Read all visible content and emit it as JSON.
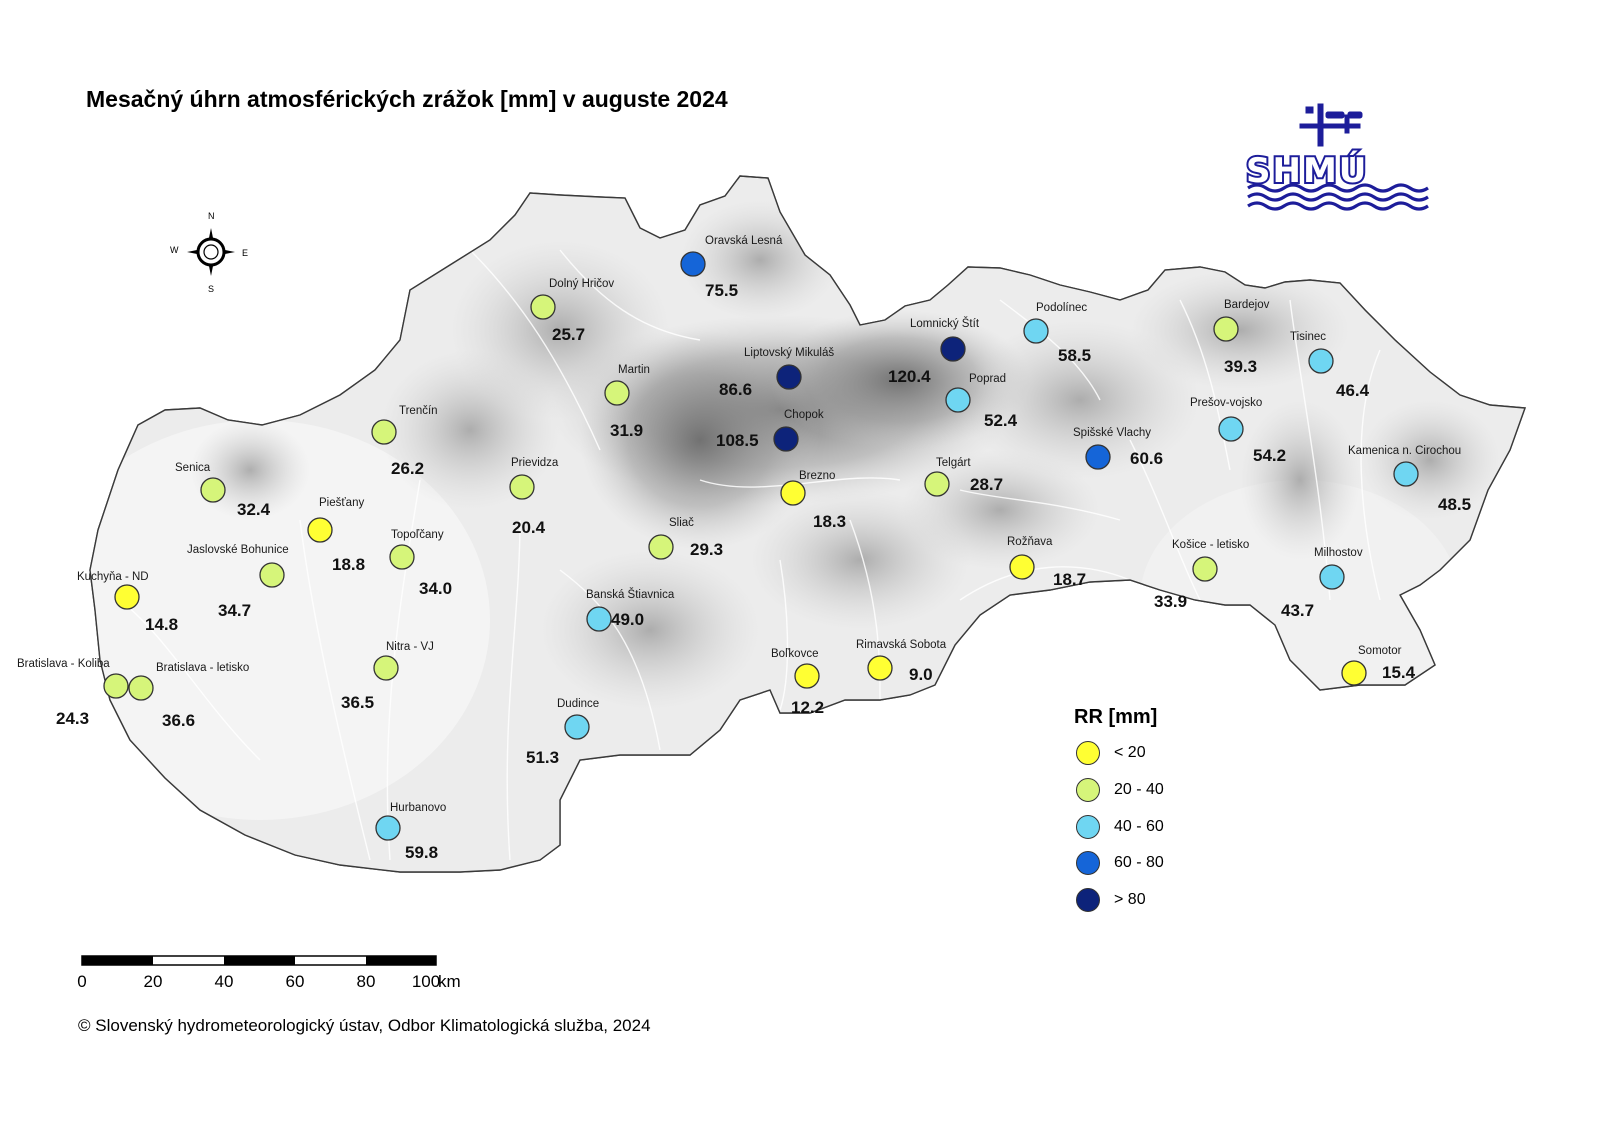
{
  "title": "Mesačný úhrn atmosférických zrážok [mm] v auguste 2024",
  "logo": {
    "text": "SHMÚ",
    "color": "#1d1d9a"
  },
  "compass": {
    "n": "N",
    "s": "S",
    "e": "E",
    "w": "W"
  },
  "legend": {
    "title": "RR [mm]",
    "classes": [
      {
        "label": "< 20",
        "color": "#ffff33"
      },
      {
        "label": "20 - 40",
        "color": "#d6f57a"
      },
      {
        "label": "40 - 60",
        "color": "#6fd6f2"
      },
      {
        "label": "60 - 80",
        "color": "#1565d8"
      },
      {
        "label": "> 80",
        "color": "#0d237a"
      }
    ]
  },
  "scale_bar": {
    "ticks": [
      "0",
      "20",
      "40",
      "60",
      "80",
      "100"
    ],
    "unit": "km"
  },
  "copyright": "© Slovenský hydrometeorologický ústav, Odbor Klimatologická služba, 2024",
  "stations": [
    {
      "name": "Oravská Lesná",
      "value": "75.5",
      "class": 3
    },
    {
      "name": "Dolný Hričov",
      "value": "25.7",
      "class": 1
    },
    {
      "name": "Martin",
      "value": "31.9",
      "class": 1
    },
    {
      "name": "Liptovský Mikuláš",
      "value": "86.6",
      "class": 4
    },
    {
      "name": "Lomnický Štít",
      "value": "120.4",
      "class": 4
    },
    {
      "name": "Podolínec",
      "value": "58.5",
      "class": 2
    },
    {
      "name": "Bardejov",
      "value": "39.3",
      "class": 1
    },
    {
      "name": "Tisinec",
      "value": "46.4",
      "class": 2
    },
    {
      "name": "Poprad",
      "value": "52.4",
      "class": 2
    },
    {
      "name": "Chopok",
      "value": "108.5",
      "class": 4
    },
    {
      "name": "Prešov-vojsko",
      "value": "54.2",
      "class": 2
    },
    {
      "name": "Spišské Vlachy",
      "value": "60.6",
      "class": 3
    },
    {
      "name": "Kamenica n. Cirochou",
      "value": "48.5",
      "class": 2
    },
    {
      "name": "Trenčín",
      "value": "26.2",
      "class": 1
    },
    {
      "name": "Senica",
      "value": "32.4",
      "class": 1
    },
    {
      "name": "Prievidza",
      "value": "20.4",
      "class": 1
    },
    {
      "name": "Brezno",
      "value": "18.3",
      "class": 0
    },
    {
      "name": "Telgárt",
      "value": "28.7",
      "class": 1
    },
    {
      "name": "Piešťany",
      "value": "18.8",
      "class": 0
    },
    {
      "name": "Sliač",
      "value": "29.3",
      "class": 1
    },
    {
      "name": "Topoľčany",
      "value": "34.0",
      "class": 1
    },
    {
      "name": "Jaslovské Bohunice",
      "value": "34.7",
      "class": 1
    },
    {
      "name": "Rožňava",
      "value": "18.7",
      "class": 0
    },
    {
      "name": "Košice - letisko",
      "value": "33.9",
      "class": 1
    },
    {
      "name": "Milhostov",
      "value": "43.7",
      "class": 2
    },
    {
      "name": "Kuchyňa - ND",
      "value": "14.8",
      "class": 0
    },
    {
      "name": "Banská Štiavnica",
      "value": "49.0",
      "class": 2
    },
    {
      "name": "Nitra - VJ",
      "value": "36.5",
      "class": 1
    },
    {
      "name": "Bratislava - Koliba",
      "value": "24.3",
      "class": 1
    },
    {
      "name": "Bratislava - letisko",
      "value": "36.6",
      "class": 1
    },
    {
      "name": "Boľkovce",
      "value": "12.2",
      "class": 0
    },
    {
      "name": "Rimavská Sobota",
      "value": "9.0",
      "class": 0
    },
    {
      "name": "Somotor",
      "value": "15.4",
      "class": 0
    },
    {
      "name": "Dudince",
      "value": "51.3",
      "class": 2
    },
    {
      "name": "Hurbanovo",
      "value": "59.8",
      "class": 2
    }
  ]
}
